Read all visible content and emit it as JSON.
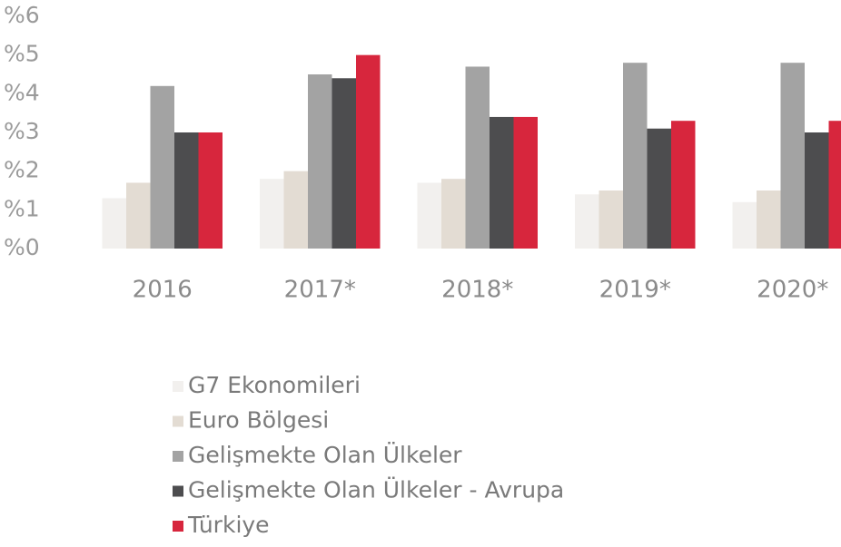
{
  "chart_data": {
    "type": "bar",
    "categories": [
      "2016",
      "2017*",
      "2018*",
      "2019*",
      "2020*"
    ],
    "series": [
      {
        "name": "G7 Ekonomileri",
        "color": "#f2f0ee",
        "values": [
          1.3,
          1.8,
          1.7,
          1.4,
          1.2
        ]
      },
      {
        "name": "Euro Bölgesi",
        "color": "#e3dcd3",
        "values": [
          1.7,
          2.0,
          1.8,
          1.5,
          1.5
        ]
      },
      {
        "name": "Gelişmekte Olan Ülkeler",
        "color": "#a3a3a3",
        "values": [
          4.2,
          4.5,
          4.7,
          4.8,
          4.8
        ]
      },
      {
        "name": "Gelişmekte Olan Ülkeler - Avrupa",
        "color": "#4d4d4f",
        "values": [
          3.0,
          4.4,
          3.4,
          3.1,
          3.0
        ]
      },
      {
        "name": "Türkiye",
        "color": "#d7263d",
        "values": [
          3.0,
          5.0,
          3.4,
          3.3,
          3.3
        ]
      }
    ],
    "ylim": [
      0,
      6
    ],
    "yticks": [
      {
        "value": 0,
        "label": "%0"
      },
      {
        "value": 1,
        "label": "%1"
      },
      {
        "value": 2,
        "label": "%2"
      },
      {
        "value": 3,
        "label": "%3"
      },
      {
        "value": 4,
        "label": "%4"
      },
      {
        "value": 5,
        "label": "%5"
      },
      {
        "value": 6,
        "label": "%6"
      }
    ],
    "grid": false
  }
}
